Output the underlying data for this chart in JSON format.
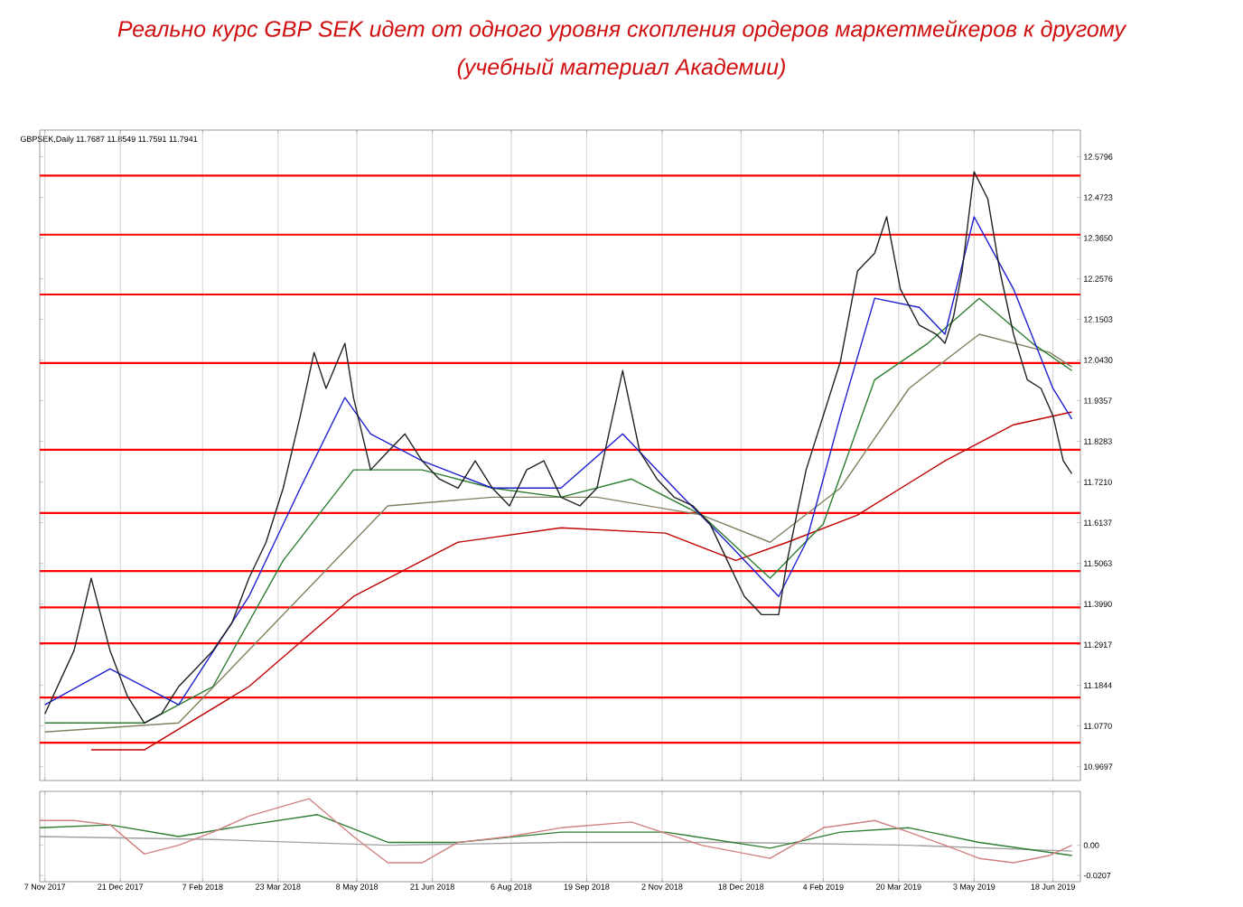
{
  "chart_data": [
    {
      "type": "line",
      "title": "Реально курс GBP SEK идет от одного уровня скопления ордеров маркетмейкеров к другому",
      "subtitle": "(учебный материал Академии)",
      "annotations": [
        "GBPSEK,Daily 11.7687 11.8549 11.7591 11.7941"
      ],
      "xlim": [
        "2017-11-04",
        "2019-07-04"
      ],
      "xticks": [
        {
          "value": "2017-11-07",
          "label": null
        },
        {
          "value": "2017-12-21",
          "label": null
        },
        {
          "value": "2018-02-07",
          "label": null
        },
        {
          "value": "2018-03-23",
          "label": null
        },
        {
          "value": "2018-05-08",
          "label": null
        },
        {
          "value": "2018-06-21",
          "label": null
        },
        {
          "value": "2018-08-06",
          "label": null
        },
        {
          "value": "2018-09-19",
          "label": null
        },
        {
          "value": "2018-11-02",
          "label": null
        },
        {
          "value": "2018-12-18",
          "label": null
        },
        {
          "value": "2019-02-04",
          "label": null
        },
        {
          "value": "2019-03-20",
          "label": null
        },
        {
          "value": "2019-05-03",
          "label": null
        },
        {
          "value": "2019-06-18",
          "label": null
        }
      ],
      "ylim": [
        10.933,
        12.65
      ],
      "yticks": [
        {
          "value": 12.5796,
          "label": "12.5796"
        },
        {
          "value": 12.4723,
          "label": "12.4723"
        },
        {
          "value": 12.365,
          "label": "12.3650"
        },
        {
          "value": 12.2576,
          "label": "12.2576"
        },
        {
          "value": 12.1503,
          "label": "12.1503"
        },
        {
          "value": 12.043,
          "label": "12.0430"
        },
        {
          "value": 11.9357,
          "label": "11.9357"
        },
        {
          "value": 11.8283,
          "label": "11.8283"
        },
        {
          "value": 11.721,
          "label": "11.7210"
        },
        {
          "value": 11.6137,
          "label": "11.6137"
        },
        {
          "value": 11.5063,
          "label": "11.5063"
        },
        {
          "value": 11.399,
          "label": "11.3990"
        },
        {
          "value": 11.2917,
          "label": "11.2917"
        },
        {
          "value": 11.1844,
          "label": "11.1844"
        },
        {
          "value": 11.077,
          "label": "11.0770"
        },
        {
          "value": 10.9697,
          "label": "10.9697"
        }
      ],
      "grid": "x",
      "tick_labels": "y",
      "ref_lines": [
        {
          "axis": "y",
          "value": 12.53,
          "color": "#ff0000"
        },
        {
          "axis": "y",
          "value": 12.374,
          "color": "#ff0000"
        },
        {
          "axis": "y",
          "value": 12.216,
          "color": "#ff0000"
        },
        {
          "axis": "y",
          "value": 12.035,
          "color": "#ff0000"
        },
        {
          "axis": "y",
          "value": 11.806,
          "color": "#ff0000"
        },
        {
          "axis": "y",
          "value": 11.639,
          "color": "#ff0000"
        },
        {
          "axis": "y",
          "value": 11.486,
          "color": "#ff0000"
        },
        {
          "axis": "y",
          "value": 11.39,
          "color": "#ff0000"
        },
        {
          "axis": "y",
          "value": 11.295,
          "color": "#ff0000"
        },
        {
          "axis": "y",
          "value": 11.152,
          "color": "#ff0000"
        },
        {
          "axis": "y",
          "value": 11.033,
          "color": "#ff0000"
        }
      ],
      "series": [
        {
          "color": "#c00000",
          "x": [
            "2017-12-04",
            "2018-01-04",
            "2018-03-06",
            "2018-05-06",
            "2018-07-06",
            "2018-09-04",
            "2018-11-04",
            "2018-12-15",
            "2019-01-14",
            "2019-02-24",
            "2019-04-16",
            "2019-05-26",
            "2019-06-29"
          ],
          "values": [
            11.014,
            11.014,
            11.181,
            11.419,
            11.562,
            11.6,
            11.586,
            11.514,
            11.562,
            11.634,
            11.777,
            11.872,
            11.906
          ]
        },
        {
          "color": "#808060",
          "x": [
            "2017-11-07",
            "2018-01-24",
            "2018-03-26",
            "2018-05-26",
            "2018-07-26",
            "2018-09-25",
            "2018-11-25",
            "2019-01-04",
            "2019-02-14",
            "2019-03-26",
            "2019-05-06",
            "2019-06-16",
            "2019-06-29"
          ],
          "values": [
            11.061,
            11.085,
            11.371,
            11.658,
            11.681,
            11.681,
            11.634,
            11.562,
            11.705,
            11.968,
            12.111,
            12.063,
            12.025
          ]
        },
        {
          "color": "#2e7d32",
          "x": [
            "2017-11-07",
            "2018-01-04",
            "2018-02-13",
            "2018-03-26",
            "2018-05-06",
            "2018-06-15",
            "2018-07-26",
            "2018-09-04",
            "2018-10-15",
            "2018-11-25",
            "2019-01-04",
            "2019-02-04",
            "2019-03-06",
            "2019-04-06",
            "2019-05-06",
            "2019-06-06",
            "2019-06-29"
          ],
          "values": [
            11.085,
            11.085,
            11.181,
            11.514,
            11.753,
            11.753,
            11.705,
            11.681,
            11.729,
            11.634,
            11.467,
            11.61,
            11.991,
            12.087,
            12.206,
            12.087,
            12.015
          ]
        },
        {
          "color": "#1f1fd0",
          "x": [
            "2017-11-07",
            "2017-12-15",
            "2018-01-24",
            "2018-03-06",
            "2018-04-05",
            "2018-05-01",
            "2018-05-16",
            "2018-06-15",
            "2018-07-26",
            "2018-09-04",
            "2018-10-10",
            "2018-11-09",
            "2018-12-10",
            "2019-01-09",
            "2019-01-25",
            "2019-02-14",
            "2019-03-06",
            "2019-04-01",
            "2019-04-16",
            "2019-05-03",
            "2019-05-26",
            "2019-06-18",
            "2019-06-29"
          ],
          "values": [
            11.133,
            11.228,
            11.133,
            11.419,
            11.705,
            11.944,
            11.848,
            11.777,
            11.705,
            11.705,
            11.848,
            11.705,
            11.562,
            11.419,
            11.562,
            11.896,
            12.206,
            12.182,
            12.111,
            12.421,
            12.23,
            11.968,
            11.887
          ]
        },
        {
          "color": "#222222",
          "x": [
            "2017-11-07",
            "2017-11-24",
            "2017-12-04",
            "2017-12-15",
            "2017-12-25",
            "2018-01-04",
            "2018-01-14",
            "2018-01-24",
            "2018-02-03",
            "2018-02-13",
            "2018-02-24",
            "2018-03-06",
            "2018-03-16",
            "2018-03-26",
            "2018-04-05",
            "2018-04-13",
            "2018-04-20",
            "2018-05-01",
            "2018-05-06",
            "2018-05-16",
            "2018-05-26",
            "2018-06-05",
            "2018-06-15",
            "2018-06-25",
            "2018-07-06",
            "2018-07-16",
            "2018-07-26",
            "2018-08-05",
            "2018-08-15",
            "2018-08-25",
            "2018-09-04",
            "2018-09-15",
            "2018-09-25",
            "2018-10-10",
            "2018-10-20",
            "2018-10-30",
            "2018-11-09",
            "2018-11-20",
            "2018-11-30",
            "2018-12-10",
            "2018-12-20",
            "2018-12-30",
            "2019-01-09",
            "2019-01-14",
            "2019-01-25",
            "2019-02-04",
            "2019-02-14",
            "2019-02-24",
            "2019-03-06",
            "2019-03-13",
            "2019-03-21",
            "2019-04-01",
            "2019-04-11",
            "2019-04-16",
            "2019-04-21",
            "2019-04-26",
            "2019-05-03",
            "2019-05-11",
            "2019-05-18",
            "2019-05-26",
            "2019-06-03",
            "2019-06-11",
            "2019-06-18",
            "2019-06-24",
            "2019-06-29"
          ],
          "values": [
            11.109,
            11.276,
            11.467,
            11.276,
            11.157,
            11.085,
            11.109,
            11.181,
            11.228,
            11.276,
            11.348,
            11.467,
            11.562,
            11.705,
            11.896,
            12.063,
            11.968,
            12.087,
            11.944,
            11.753,
            11.801,
            11.848,
            11.777,
            11.729,
            11.705,
            11.777,
            11.705,
            11.658,
            11.753,
            11.777,
            11.681,
            11.658,
            11.705,
            12.015,
            11.801,
            11.729,
            11.681,
            11.658,
            11.61,
            11.514,
            11.419,
            11.371,
            11.371,
            11.514,
            11.753,
            11.896,
            12.039,
            12.278,
            12.325,
            12.421,
            12.23,
            12.135,
            12.111,
            12.087,
            12.158,
            12.278,
            12.54,
            12.468,
            12.278,
            12.111,
            11.991,
            11.968,
            11.896,
            11.777,
            11.743
          ]
        }
      ]
    },
    {
      "type": "line",
      "xlim": [
        "2017-11-04",
        "2019-07-04"
      ],
      "xticks": [
        {
          "value": "2017-11-07",
          "label": "7 Nov 2017"
        },
        {
          "value": "2017-12-21",
          "label": "21 Dec 2017"
        },
        {
          "value": "2018-02-07",
          "label": "7 Feb 2018"
        },
        {
          "value": "2018-03-23",
          "label": "23 Mar 2018"
        },
        {
          "value": "2018-05-08",
          "label": "8 May 2018"
        },
        {
          "value": "2018-06-21",
          "label": "21 Jun 2018"
        },
        {
          "value": "2018-08-06",
          "label": "6 Aug 2018"
        },
        {
          "value": "2018-09-19",
          "label": "19 Sep 2018"
        },
        {
          "value": "2018-11-02",
          "label": "2 Nov 2018"
        },
        {
          "value": "2018-12-18",
          "label": "18 Dec 2018"
        },
        {
          "value": "2019-02-04",
          "label": "4 Feb 2019"
        },
        {
          "value": "2019-03-20",
          "label": "20 Mar 2019"
        },
        {
          "value": "2019-05-03",
          "label": "3 May 2019"
        },
        {
          "value": "2019-06-18",
          "label": "18 Jun 2019"
        }
      ],
      "ylim": [
        -0.025,
        0.037
      ],
      "yticks": [
        {
          "value": 0,
          "label": "0.00"
        },
        {
          "value": -0.0207,
          "label": "-0.0207"
        }
      ],
      "grid": "x",
      "series": [
        {
          "color": "#a0a0a0",
          "x": [
            "2017-11-04",
            "2018-02-13",
            "2018-05-26",
            "2018-09-04",
            "2018-12-15",
            "2019-03-26",
            "2019-06-29"
          ],
          "values": [
            0.006,
            0.004,
            0,
            0.002,
            0.002,
            0,
            -0.004
          ]
        },
        {
          "color": "#2e7d32",
          "x": [
            "2017-11-04",
            "2017-12-15",
            "2018-01-24",
            "2018-03-06",
            "2018-04-15",
            "2018-05-26",
            "2018-07-06",
            "2018-09-04",
            "2018-11-04",
            "2019-01-04",
            "2019-02-14",
            "2019-03-26",
            "2019-05-06",
            "2019-06-29"
          ],
          "values": [
            0.012,
            0.014,
            0.006,
            0.014,
            0.021,
            0.002,
            0.002,
            0.009,
            0.009,
            -0.002,
            0.009,
            0.012,
            0.002,
            -0.007
          ]
        },
        {
          "color": "#d08080",
          "x": [
            "2017-11-04",
            "2017-11-24",
            "2017-12-15",
            "2018-01-04",
            "2018-01-24",
            "2018-02-13",
            "2018-03-06",
            "2018-04-10",
            "2018-05-06",
            "2018-05-26",
            "2018-06-15",
            "2018-07-06",
            "2018-08-05",
            "2018-09-04",
            "2018-10-15",
            "2018-11-25",
            "2019-01-04",
            "2019-02-04",
            "2019-03-06",
            "2019-03-26",
            "2019-04-16",
            "2019-05-06",
            "2019-05-26",
            "2019-06-16",
            "2019-06-29"
          ],
          "values": [
            0.017,
            0.017,
            0.014,
            -0.006,
            0,
            0.009,
            0.02,
            0.032,
            0.006,
            -0.012,
            -0.012,
            0.002,
            0.006,
            0.012,
            0.016,
            0,
            -0.009,
            0.012,
            0.017,
            0.009,
            0,
            -0.009,
            -0.012,
            -0.007,
            0
          ]
        }
      ]
    }
  ]
}
